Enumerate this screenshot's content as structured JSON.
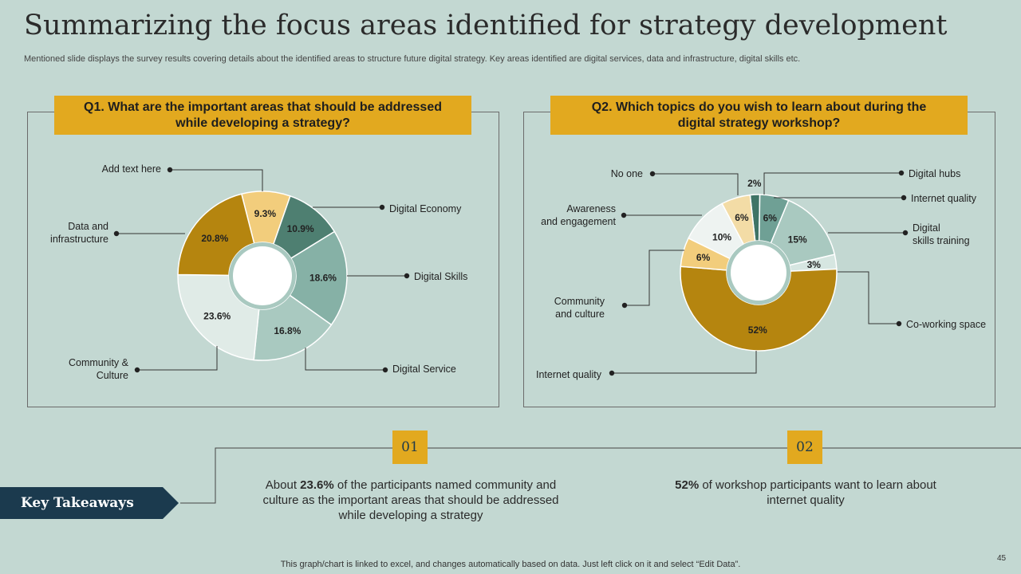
{
  "title": "Summarizing the focus areas identified for strategy development",
  "subtitle": "Mentioned slide displays the survey results covering details about the identified areas to structure future digital strategy. Key areas identified are digital services, data and infrastructure, digital skills etc.",
  "chart_data": [
    {
      "type": "pie",
      "title_lines": [
        "Q1. What are the important areas that should be addressed",
        "while developing a strategy?"
      ],
      "slices": [
        {
          "category": "Add text here",
          "value": 9.3,
          "label": "9.3%",
          "color": "#f2cd7c"
        },
        {
          "category": "Digital Economy",
          "value": 10.9,
          "label": "10.9%",
          "color": "#4e7f71"
        },
        {
          "category": "Digital Skills",
          "value": 18.6,
          "label": "18.6%",
          "color": "#86b1a6"
        },
        {
          "category": "Digital Service",
          "value": 16.8,
          "label": "16.8%",
          "color": "#a9c9c0"
        },
        {
          "category": "Community & Culture",
          "value": 23.6,
          "label": "23.6%",
          "color": "#e0ebe7"
        },
        {
          "category": "Data and infrastructure",
          "value": 20.8,
          "label": "20.8%",
          "color": "#b5850f"
        }
      ],
      "legend_labels": [
        {
          "text": "Add text here"
        },
        {
          "text": "Digital Economy"
        },
        {
          "text": "Digital Skills"
        },
        {
          "text": "Digital Service"
        },
        {
          "text": "Community &",
          "text2": "Culture"
        },
        {
          "text": "Data and",
          "text2": "infrastructure"
        }
      ]
    },
    {
      "type": "pie",
      "title_lines": [
        "Q2. Which topics do you wish to learn about during the",
        "digital strategy workshop?"
      ],
      "slices": [
        {
          "category": "Digital hubs",
          "value": 2,
          "label": "2%",
          "color": "#3f7466"
        },
        {
          "category": "Internet quality",
          "value": 6,
          "label": "6%",
          "color": "#6fa095"
        },
        {
          "category": "Digital skills training",
          "value": 15,
          "label": "15%",
          "color": "#a9c9c0"
        },
        {
          "category": "Co-working space",
          "value": 3,
          "label": "3%",
          "color": "#d6e6e1"
        },
        {
          "category": "Internet quality",
          "value": 52,
          "label": "52%",
          "color": "#b5850f"
        },
        {
          "category": "Community and culture",
          "value": 6,
          "label": "6%",
          "color": "#f2cd7c"
        },
        {
          "category": "Awareness and engagement",
          "value": 10,
          "label": "10%",
          "color": "#eef3f1"
        },
        {
          "category": "No one",
          "value": 6,
          "label": "6%",
          "color": "#f3dca6"
        }
      ],
      "legend_labels": [
        {
          "text": "Digital hubs"
        },
        {
          "text": "Internet quality"
        },
        {
          "text": "Digital",
          "text2": "skills training"
        },
        {
          "text": "Co-working  space"
        },
        {
          "text": "Internet quality"
        },
        {
          "text": "Community",
          "text2": "and culture"
        },
        {
          "text": "Awareness",
          "text2": "and engagement"
        },
        {
          "text": "No one"
        }
      ]
    }
  ],
  "takeaways": {
    "heading": "Key Takeaways",
    "items": [
      {
        "number": "01",
        "bold": "23.6%",
        "pre": "About ",
        "post": " of the participants named community and culture  as the important areas that should be addressed while developing a strategy"
      },
      {
        "number": "02",
        "bold": "52%",
        "pre": "",
        "post": " of workshop participants want to learn about internet quality"
      }
    ]
  },
  "footer": "This graph/chart is linked to excel,  and changes automatically based on data. Just left click on it and select “Edit Data”.",
  "page_number": "45"
}
